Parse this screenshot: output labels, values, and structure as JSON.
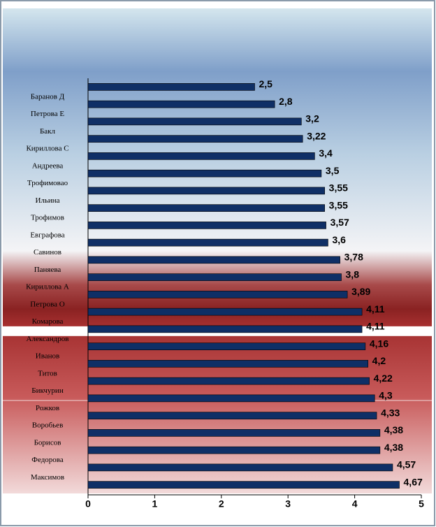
{
  "chart_data": {
    "type": "bar",
    "orientation": "horizontal",
    "categories": [
      "Баранов Д",
      "Петрова Е",
      "Бакл",
      "Кириллова С",
      "Андреева",
      "Трофимовао",
      "Ильина",
      "Трофимов",
      "Евграфова",
      "Савинов",
      "Паняева",
      "Кириллова А",
      "Петрова О",
      "Комарова",
      "Александров",
      "Иванов",
      "Титов",
      "Бикчурин",
      "Рожков",
      "Воробьев",
      "Борисов",
      "Федорова",
      "Максимов",
      null
    ],
    "values": [
      2.5,
      2.8,
      3.2,
      3.22,
      3.4,
      3.5,
      3.55,
      3.55,
      3.57,
      3.6,
      3.78,
      3.8,
      3.89,
      4.11,
      4.11,
      4.16,
      4.2,
      4.22,
      4.3,
      4.33,
      4.38,
      4.38,
      4.57,
      4.67
    ],
    "value_labels": [
      "2,5",
      "2,8",
      "3,2",
      "3,22",
      "3,4",
      "3,5",
      "3,55",
      "3,55",
      "3,57",
      "3,6",
      "3,78",
      "3,8",
      "3,89",
      "4,11",
      "4,11",
      "4,16",
      "4,2",
      "4,22",
      "4,3",
      "4,33",
      "4,38",
      "4,38",
      "4,57",
      "4,67"
    ],
    "color": "#0f2f66",
    "xlim": [
      0,
      5
    ],
    "xticks": [
      0,
      1,
      2,
      3,
      4,
      5
    ]
  }
}
